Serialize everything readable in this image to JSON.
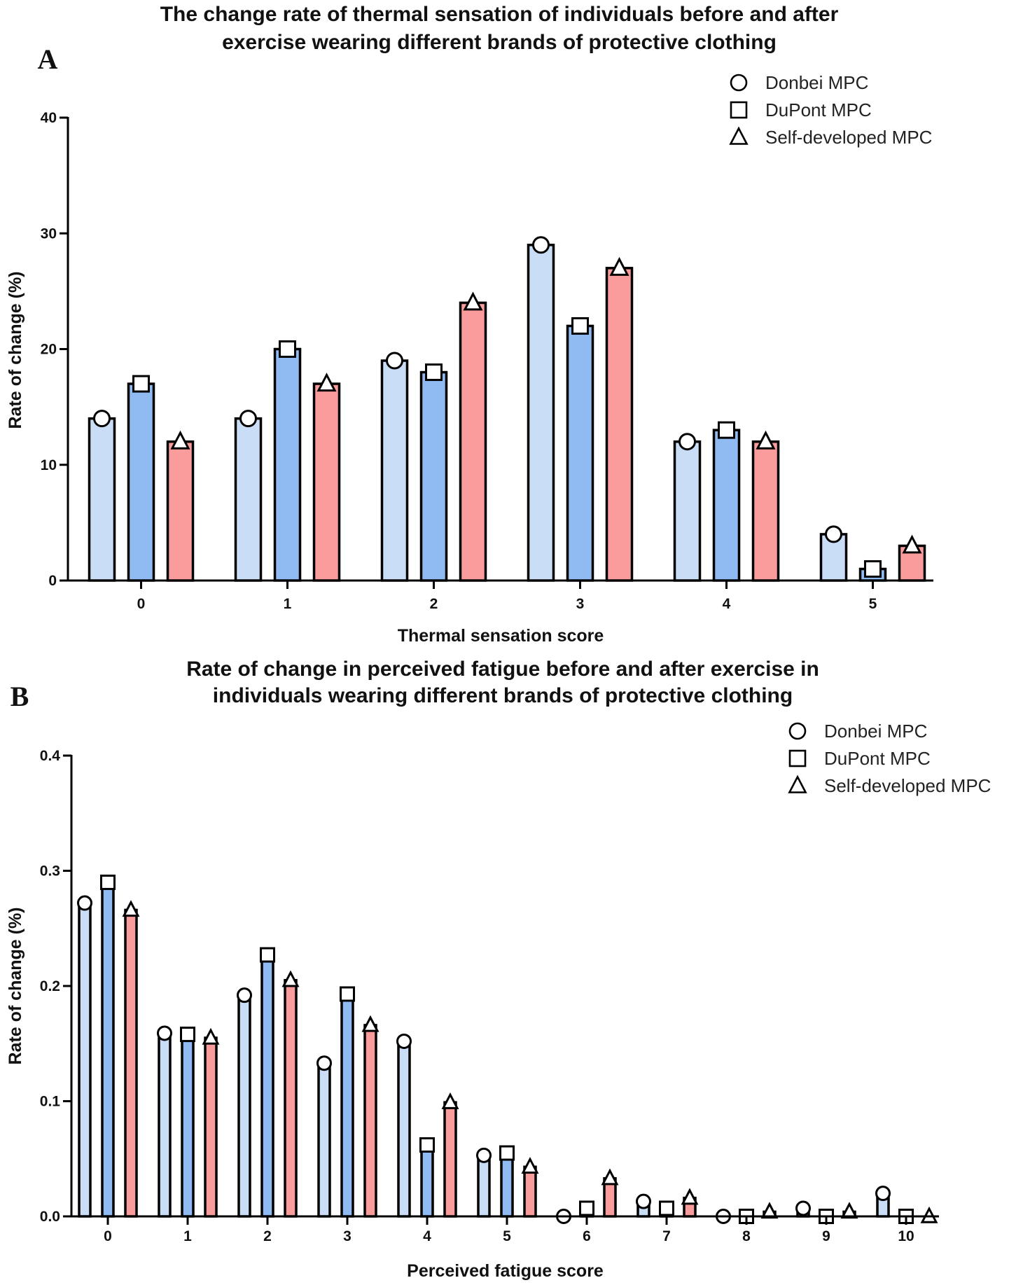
{
  "chart_data": [
    {
      "type": "bar",
      "panel": "A",
      "title": [
        "The change rate of thermal sensation of individuals before and after",
        "exercise wearing different brands of protective clothing"
      ],
      "xlabel": "Thermal sensation score",
      "ylabel": "Rate of change (%)",
      "categories": [
        "0",
        "1",
        "2",
        "3",
        "4",
        "5"
      ],
      "ylim": [
        0,
        40
      ],
      "yticks": [
        "0",
        "10",
        "20",
        "30",
        "40"
      ],
      "series": [
        {
          "name": "Donbei MPC",
          "marker": "circle",
          "color": "#c9ddf7",
          "values": [
            14,
            14,
            19,
            29,
            12,
            4
          ]
        },
        {
          "name": "DuPont MPC",
          "marker": "square",
          "color": "#8fbaf2",
          "values": [
            17,
            20,
            18,
            22,
            13,
            1
          ]
        },
        {
          "name": "Self-developed MPC",
          "marker": "triangle",
          "color": "#fa9c9c",
          "values": [
            12,
            17,
            24,
            27,
            12,
            3
          ]
        }
      ]
    },
    {
      "type": "bar",
      "panel": "B",
      "title": [
        "Rate of change in perceived fatigue before and after exercise in",
        "individuals wearing different brands of protective clothing"
      ],
      "xlabel": "Perceived fatigue score",
      "ylabel": "Rate of change (%)",
      "categories": [
        "0",
        "1",
        "2",
        "3",
        "4",
        "5",
        "6",
        "7",
        "8",
        "9",
        "10"
      ],
      "ylim": [
        0,
        0.4
      ],
      "yticks": [
        "0.0",
        "0.1",
        "0.2",
        "0.3",
        "0.4"
      ],
      "series": [
        {
          "name": "Donbei MPC",
          "marker": "circle",
          "color": "#c9ddf7",
          "values": [
            0.272,
            0.159,
            0.192,
            0.133,
            0.152,
            0.053,
            0.0,
            0.013,
            0.0,
            0.007,
            0.02
          ]
        },
        {
          "name": "DuPont MPC",
          "marker": "square",
          "color": "#8fbaf2",
          "values": [
            0.29,
            0.158,
            0.227,
            0.193,
            0.062,
            0.055,
            0.007,
            0.007,
            0.0,
            0.0,
            0.0
          ]
        },
        {
          "name": "Self-developed MPC",
          "marker": "triangle",
          "color": "#fa9c9c",
          "values": [
            0.266,
            0.155,
            0.205,
            0.166,
            0.099,
            0.043,
            0.033,
            0.016,
            0.004,
            0.004,
            0.0
          ]
        }
      ]
    }
  ]
}
